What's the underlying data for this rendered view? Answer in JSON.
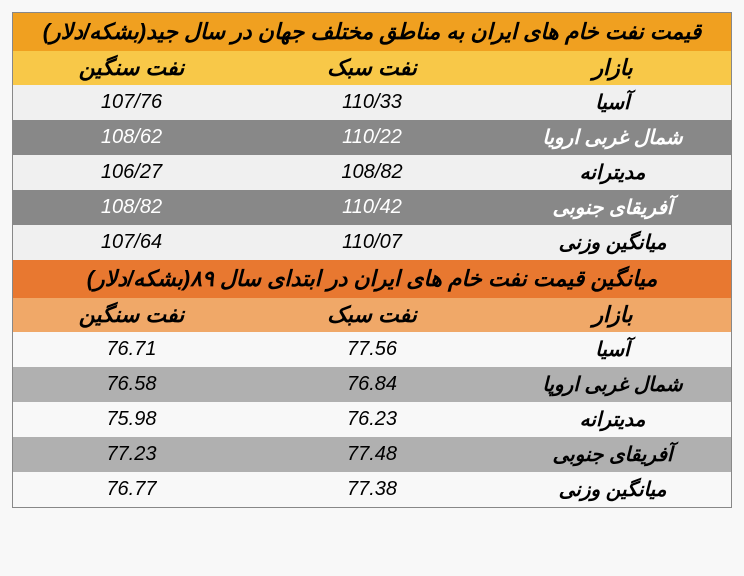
{
  "table1": {
    "title": "قیمت نفت خام های ایران به مناطق مختلف جهان در سال جید(بشکه/دلار)",
    "columns": [
      "بازار",
      "نفت سبک",
      "نفت سنگین"
    ],
    "rows": [
      {
        "market": "آسیا",
        "light": "110/33",
        "heavy": "107/76"
      },
      {
        "market": "شمال غربی ارویا",
        "light": "110/22",
        "heavy": "108/62"
      },
      {
        "market": "مدیترانه",
        "light": "108/82",
        "heavy": "106/27"
      },
      {
        "market": "آفریقای جنوبی",
        "light": "110/42",
        "heavy": "108/82"
      },
      {
        "market": "میانگین وزنی",
        "light": "110/07",
        "heavy": "107/64"
      }
    ],
    "title_bg": "#f0a020",
    "header_bg": "#f8c848",
    "even_bg": "#f0f0f0",
    "odd_bg": "#888888",
    "odd_fg": "#ffffff"
  },
  "table2": {
    "title": "میانگین قیمت نفت خام های ایران در ابتدای سال ۸۹(بشکه/دلار)",
    "columns": [
      "بازار",
      "نفت سبک",
      "نفت سنگین"
    ],
    "rows": [
      {
        "market": "آسیا",
        "light": "77.56",
        "heavy": "76.71"
      },
      {
        "market": "شمال غربی اروپا",
        "light": "76.84",
        "heavy": "76.58"
      },
      {
        "market": "مدیترانه",
        "light": "76.23",
        "heavy": "75.98"
      },
      {
        "market": "آفریقای جنوبی",
        "light": "77.48",
        "heavy": "77.23"
      },
      {
        "market": "میانگین وزنی",
        "light": "77.38",
        "heavy": "76.77"
      }
    ],
    "title_bg": "#e87830",
    "header_bg": "#f0a868",
    "even_bg": "#f8f8f8",
    "odd_bg": "#b0b0b0",
    "odd_fg": "#000000"
  }
}
